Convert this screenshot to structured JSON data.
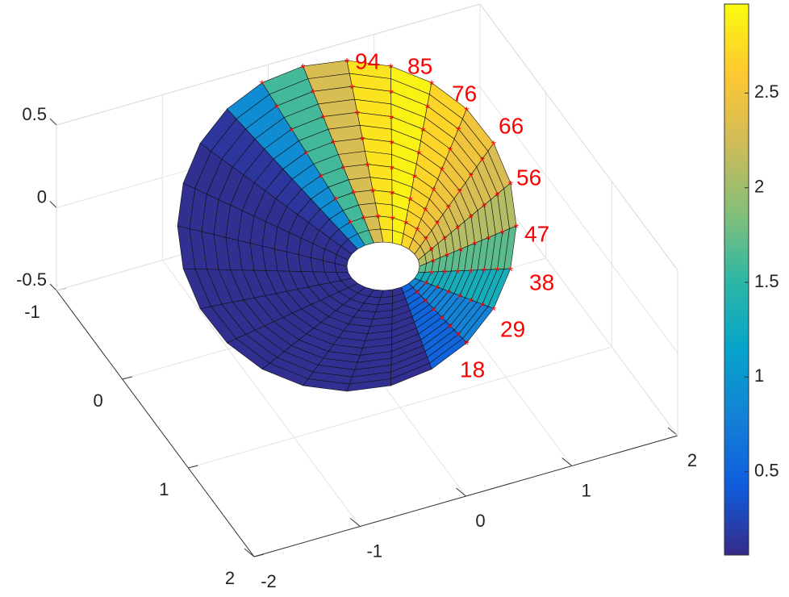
{
  "chart_data": {
    "type": "surface",
    "xlim": [
      -2,
      2
    ],
    "ylim": [
      -1,
      2
    ],
    "zlim": [
      -0.5,
      0.5
    ],
    "xticks": [
      -2,
      -1,
      0,
      1,
      2
    ],
    "yticks": [
      -1,
      0,
      1,
      2
    ],
    "zticks": [
      -0.5,
      0,
      0.5
    ],
    "grid": true,
    "colormap": "parula",
    "colorbar": {
      "clim": [
        0.06,
        2.97
      ],
      "ticks": [
        0.5,
        1,
        1.5,
        2,
        2.5
      ]
    },
    "surface": {
      "column_values": [
        0.1,
        0.1,
        0.15,
        0.9,
        1.6,
        2.3,
        2.8,
        2.9,
        2.7,
        2.5,
        2.3,
        2.1,
        1.7,
        1.3,
        0.8,
        0.5,
        0.1,
        0.1,
        0.1,
        0.1,
        0.1,
        0.1,
        0.1,
        0.1
      ]
    },
    "point_labels": [
      "94",
      "85",
      "76",
      "66",
      "56",
      "47",
      "38",
      "29",
      "18"
    ],
    "label_color": "#ff0000"
  }
}
